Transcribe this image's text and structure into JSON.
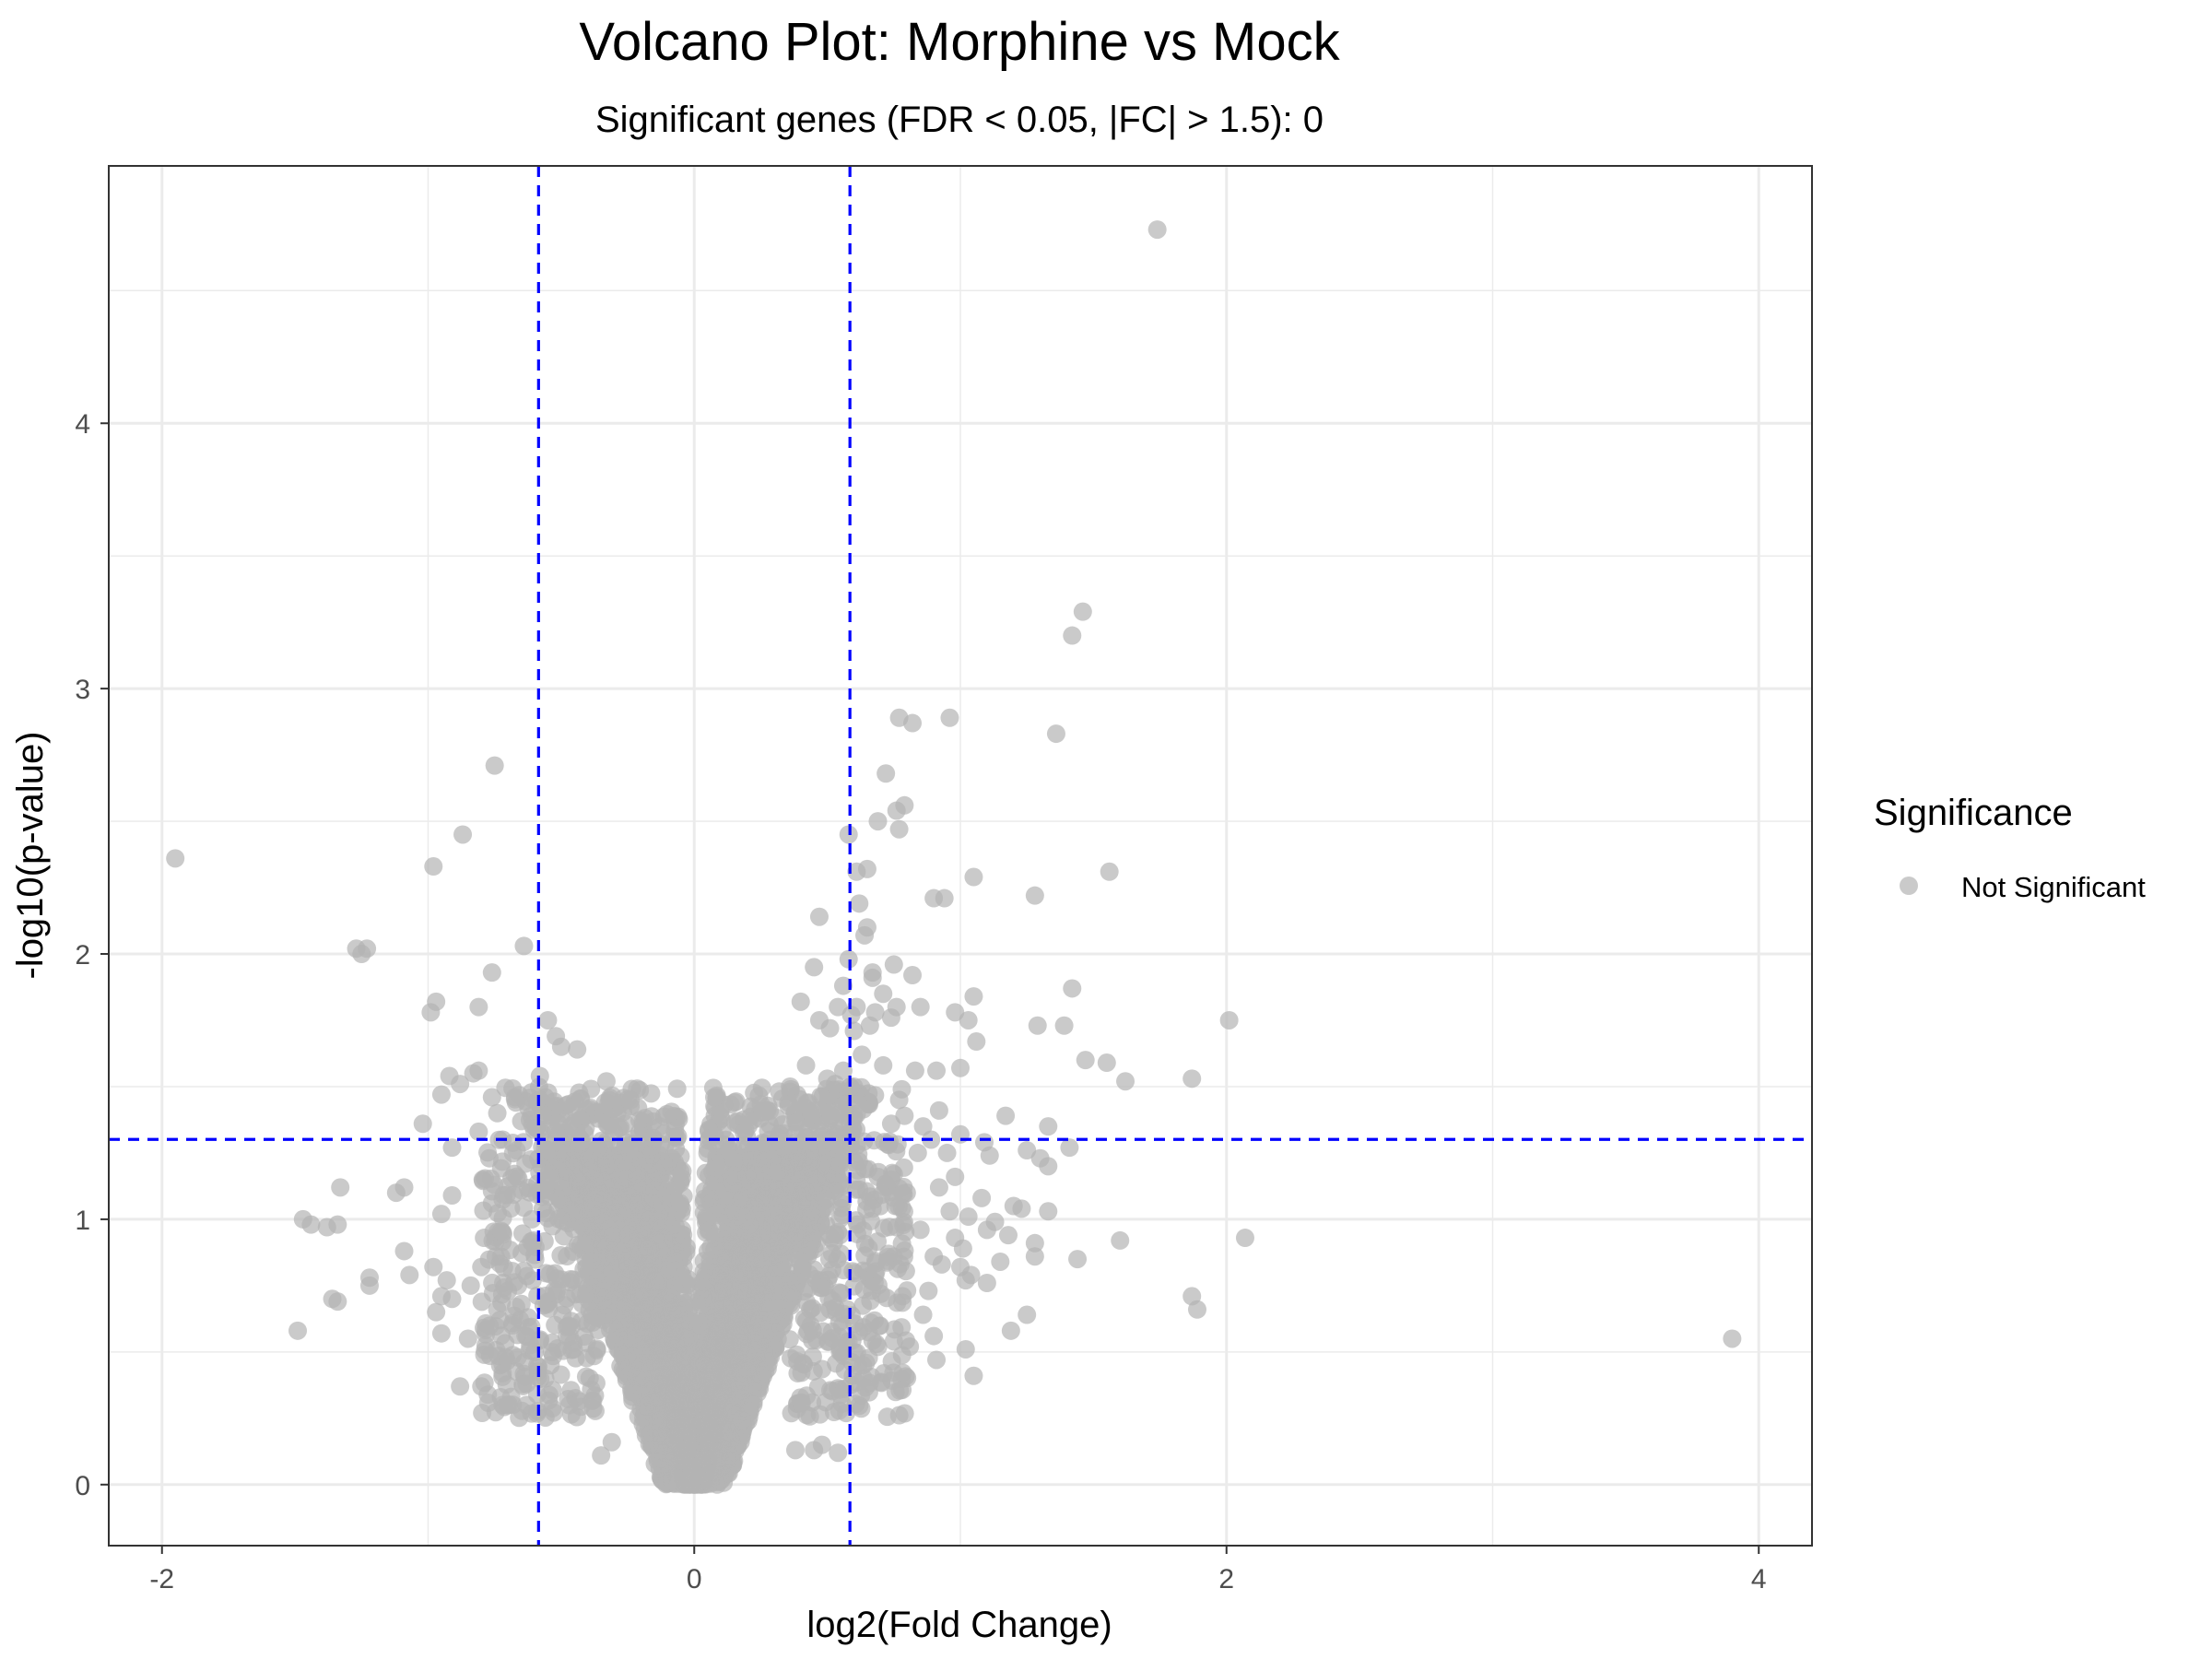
{
  "chart_data": {
    "type": "scatter",
    "title": "Volcano Plot: Morphine vs Mock",
    "subtitle": "Significant genes (FDR < 0.05, |FC| > 1.5): 0",
    "xlabel": "log2(Fold Change)",
    "ylabel": "-log10(p-value)",
    "xlim": [
      -2.2,
      4.2
    ],
    "ylim": [
      -0.23,
      4.97
    ],
    "xticks": [
      -2,
      0,
      2,
      4
    ],
    "xtick_labels": [
      "-2",
      "0",
      "2",
      "4"
    ],
    "yticks": [
      0,
      1,
      2,
      3,
      4
    ],
    "ytick_labels": [
      "0",
      "1",
      "2",
      "3",
      "4"
    ],
    "grid": true,
    "threshold_lines": {
      "vertical": [
        -0.585,
        0.585
      ],
      "horizontal": 1.301,
      "color": "#0000ff",
      "style": "dashed"
    },
    "legend": {
      "title": "Significance",
      "placement": "right",
      "entries": [
        {
          "label": "Not Significant",
          "color": "#b3b3b3"
        }
      ]
    },
    "point_color": "#b3b3b3",
    "point_opacity": 0.7,
    "series": [
      {
        "label": "Not Significant",
        "points": [
          [
            1.74,
            4.73
          ],
          [
            1.46,
            3.29
          ],
          [
            1.42,
            3.2
          ],
          [
            0.77,
            2.89
          ],
          [
            0.96,
            2.89
          ],
          [
            0.82,
            2.87
          ],
          [
            1.36,
            2.83
          ],
          [
            -0.75,
            2.71
          ],
          [
            0.72,
            2.68
          ],
          [
            0.79,
            2.56
          ],
          [
            0.76,
            2.54
          ],
          [
            0.69,
            2.5
          ],
          [
            0.77,
            2.47
          ],
          [
            -0.87,
            2.45
          ],
          [
            0.58,
            2.45
          ],
          [
            -1.95,
            2.36
          ],
          [
            -0.98,
            2.33
          ],
          [
            0.65,
            2.32
          ],
          [
            0.61,
            2.31
          ],
          [
            1.56,
            2.31
          ],
          [
            1.05,
            2.29
          ],
          [
            1.28,
            2.22
          ],
          [
            0.9,
            2.21
          ],
          [
            0.94,
            2.21
          ],
          [
            0.62,
            2.19
          ],
          [
            0.47,
            2.14
          ],
          [
            0.65,
            2.1
          ],
          [
            0.64,
            2.07
          ],
          [
            -1.23,
            2.02
          ],
          [
            -1.27,
            2.02
          ],
          [
            -0.64,
            2.03
          ],
          [
            -1.25,
            2.0
          ],
          [
            0.58,
            1.98
          ],
          [
            0.75,
            1.96
          ],
          [
            0.45,
            1.95
          ],
          [
            0.67,
            1.93
          ],
          [
            0.82,
            1.92
          ],
          [
            -0.76,
            1.93
          ],
          [
            0.67,
            1.91
          ],
          [
            0.56,
            1.88
          ],
          [
            1.42,
            1.87
          ],
          [
            0.71,
            1.85
          ],
          [
            1.05,
            1.84
          ],
          [
            0.4,
            1.82
          ],
          [
            -0.97,
            1.82
          ],
          [
            0.61,
            1.8
          ],
          [
            0.54,
            1.8
          ],
          [
            0.76,
            1.8
          ],
          [
            0.85,
            1.8
          ],
          [
            -0.81,
            1.8
          ],
          [
            0.68,
            1.78
          ],
          [
            0.98,
            1.78
          ],
          [
            -0.99,
            1.78
          ],
          [
            0.59,
            1.77
          ],
          [
            0.74,
            1.76
          ],
          [
            2.01,
            1.75
          ],
          [
            1.03,
            1.75
          ],
          [
            -0.55,
            1.75
          ],
          [
            0.47,
            1.75
          ],
          [
            0.66,
            1.73
          ],
          [
            1.29,
            1.73
          ],
          [
            1.39,
            1.73
          ],
          [
            0.51,
            1.72
          ],
          [
            0.6,
            1.71
          ],
          [
            -0.52,
            1.69
          ],
          [
            1.06,
            1.67
          ],
          [
            -0.5,
            1.65
          ],
          [
            -0.44,
            1.64
          ],
          [
            0.63,
            1.62
          ],
          [
            1.47,
            1.6
          ],
          [
            1.55,
            1.59
          ],
          [
            0.71,
            1.58
          ],
          [
            -0.81,
            1.56
          ],
          [
            0.42,
            1.58
          ],
          [
            0.56,
            1.56
          ],
          [
            0.83,
            1.56
          ],
          [
            0.91,
            1.56
          ],
          [
            1.0,
            1.57
          ],
          [
            -0.92,
            1.54
          ],
          [
            -0.83,
            1.55
          ],
          [
            1.87,
            1.53
          ],
          [
            -0.58,
            1.54
          ],
          [
            0.5,
            1.53
          ],
          [
            1.62,
            1.52
          ],
          [
            0.53,
            1.51
          ],
          [
            -0.33,
            1.52
          ],
          [
            -0.88,
            1.51
          ],
          [
            0.36,
            1.5
          ],
          [
            0.6,
            1.5
          ],
          [
            0.78,
            1.49
          ],
          [
            -0.95,
            1.47
          ],
          [
            -0.76,
            1.46
          ],
          [
            0.63,
            1.46
          ],
          [
            0.77,
            1.45
          ],
          [
            -0.67,
            1.44
          ],
          [
            0.43,
            1.44
          ],
          [
            -0.58,
            1.45
          ],
          [
            -0.48,
            1.43
          ],
          [
            -0.39,
            1.42
          ],
          [
            0.92,
            1.41
          ],
          [
            0.79,
            1.39
          ],
          [
            -0.74,
            1.4
          ],
          [
            1.17,
            1.39
          ],
          [
            0.51,
            1.38
          ],
          [
            -0.65,
            1.37
          ],
          [
            -1.02,
            1.36
          ],
          [
            0.74,
            1.36
          ],
          [
            0.86,
            1.35
          ],
          [
            1.33,
            1.35
          ],
          [
            -0.52,
            1.33
          ],
          [
            0.59,
            1.32
          ],
          [
            -0.81,
            1.33
          ],
          [
            1.0,
            1.32
          ],
          [
            -0.72,
            1.3
          ],
          [
            0.89,
            1.3
          ],
          [
            1.09,
            1.29
          ],
          [
            -0.34,
            1.28
          ],
          [
            0.73,
            1.28
          ],
          [
            -0.91,
            1.27
          ],
          [
            1.41,
            1.27
          ],
          [
            0.84,
            1.25
          ],
          [
            1.25,
            1.26
          ],
          [
            0.95,
            1.25
          ],
          [
            -0.77,
            1.23
          ],
          [
            1.11,
            1.24
          ],
          [
            1.3,
            1.23
          ],
          [
            -0.46,
            1.2
          ],
          [
            0.64,
            1.19
          ],
          [
            1.33,
            1.2
          ],
          [
            0.75,
            1.17
          ],
          [
            0.69,
            1.16
          ],
          [
            -0.54,
            1.16
          ],
          [
            0.74,
            1.15
          ],
          [
            0.98,
            1.16
          ],
          [
            -1.33,
            1.12
          ],
          [
            -1.09,
            1.12
          ],
          [
            -0.65,
            1.11
          ],
          [
            0.92,
            1.12
          ],
          [
            0.45,
            1.1
          ],
          [
            -1.12,
            1.1
          ],
          [
            -0.91,
            1.09
          ],
          [
            1.08,
            1.08
          ],
          [
            -0.76,
            1.06
          ],
          [
            1.2,
            1.05
          ],
          [
            0.67,
            1.04
          ],
          [
            -0.95,
            1.02
          ],
          [
            1.23,
            1.04
          ],
          [
            1.33,
            1.03
          ],
          [
            0.96,
            1.03
          ],
          [
            1.03,
            1.01
          ],
          [
            -0.61,
            1.0
          ],
          [
            -1.47,
            1.0
          ],
          [
            1.13,
            0.99
          ],
          [
            -1.44,
            0.98
          ],
          [
            -1.34,
            0.98
          ],
          [
            -1.38,
            0.97
          ],
          [
            0.76,
            0.97
          ],
          [
            0.85,
            0.96
          ],
          [
            1.1,
            0.96
          ],
          [
            -0.72,
            0.95
          ],
          [
            1.18,
            0.94
          ],
          [
            0.98,
            0.93
          ],
          [
            2.07,
            0.93
          ],
          [
            -0.79,
            0.93
          ],
          [
            1.6,
            0.92
          ],
          [
            1.28,
            0.91
          ],
          [
            1.01,
            0.89
          ],
          [
            -1.09,
            0.88
          ],
          [
            0.73,
            0.87
          ],
          [
            1.44,
            0.85
          ],
          [
            0.9,
            0.86
          ],
          [
            1.28,
            0.86
          ],
          [
            -0.98,
            0.82
          ],
          [
            0.93,
            0.83
          ],
          [
            1.0,
            0.82
          ],
          [
            -0.8,
            0.82
          ],
          [
            1.15,
            0.84
          ],
          [
            -1.07,
            0.79
          ],
          [
            1.04,
            0.79
          ],
          [
            -0.93,
            0.77
          ],
          [
            -1.22,
            0.78
          ],
          [
            1.02,
            0.77
          ],
          [
            -1.22,
            0.75
          ],
          [
            -0.84,
            0.75
          ],
          [
            1.1,
            0.76
          ],
          [
            -0.7,
            0.73
          ],
          [
            0.88,
            0.73
          ],
          [
            -0.95,
            0.71
          ],
          [
            1.87,
            0.71
          ],
          [
            -1.36,
            0.7
          ],
          [
            -1.34,
            0.69
          ],
          [
            -0.91,
            0.7
          ],
          [
            1.89,
            0.66
          ],
          [
            -0.97,
            0.65
          ],
          [
            0.86,
            0.64
          ],
          [
            1.25,
            0.64
          ],
          [
            -0.73,
            0.62
          ],
          [
            -1.49,
            0.58
          ],
          [
            1.19,
            0.58
          ],
          [
            -0.95,
            0.57
          ],
          [
            0.9,
            0.56
          ],
          [
            -0.85,
            0.55
          ],
          [
            3.9,
            0.55
          ],
          [
            0.75,
            0.54
          ],
          [
            0.81,
            0.52
          ],
          [
            1.02,
            0.51
          ],
          [
            -0.6,
            0.5
          ],
          [
            0.91,
            0.47
          ],
          [
            -0.54,
            0.45
          ],
          [
            -0.72,
            0.42
          ],
          [
            1.05,
            0.41
          ],
          [
            -0.56,
            0.4
          ],
          [
            -0.63,
            0.38
          ],
          [
            -0.8,
            0.37
          ],
          [
            -0.88,
            0.37
          ],
          [
            -0.59,
            0.34
          ],
          [
            -0.72,
            0.3
          ],
          [
            -0.63,
            0.3
          ],
          [
            0.45,
            0.13
          ],
          [
            0.38,
            0.13
          ],
          [
            -0.35,
            0.11
          ],
          [
            0.54,
            0.12
          ],
          [
            0.48,
            0.15
          ],
          [
            -0.31,
            0.16
          ]
        ],
        "dense_band": {
          "half_width": [
            0.2,
            0.4,
            0.95,
            1.85,
            3.4
          ],
          "notch": [
            0.0,
            0.05,
            0.1,
            0.25,
            0.55
          ],
          "lfc": [
            0.0,
            0.08,
            0.2,
            0.35,
            0.5
          ],
          "upper_y": [
            0.0,
            0.25,
            0.55,
            1.0,
            1.55
          ]
        }
      }
    ]
  }
}
